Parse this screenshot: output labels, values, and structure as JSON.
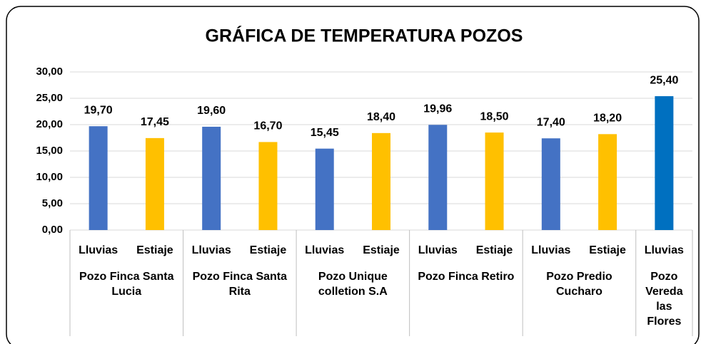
{
  "chart_data": {
    "type": "bar",
    "title": "GRÁFICA DE TEMPERATURA POZOS",
    "ylim": [
      0,
      30
    ],
    "yticks": [
      {
        "value": 0,
        "label": "0,00"
      },
      {
        "value": 5,
        "label": "5,00"
      },
      {
        "value": 10,
        "label": "10,00"
      },
      {
        "value": 15,
        "label": "15,00"
      },
      {
        "value": 20,
        "label": "20,00"
      },
      {
        "value": 25,
        "label": "25,00"
      },
      {
        "value": 30,
        "label": "30,00"
      }
    ],
    "grid": true,
    "groups": [
      {
        "name": "Pozo Finca Santa Lucia",
        "categories": [
          "Lluvias",
          "Estiaje"
        ],
        "values": [
          19.7,
          17.45
        ],
        "value_labels": [
          "19,70",
          "17,45"
        ],
        "colors": [
          "#4472c4",
          "#ffc000"
        ]
      },
      {
        "name": "Pozo Finca Santa Rita",
        "categories": [
          "Lluvias",
          "Estiaje"
        ],
        "values": [
          19.6,
          16.7
        ],
        "value_labels": [
          "19,60",
          "16,70"
        ],
        "colors": [
          "#4472c4",
          "#ffc000"
        ]
      },
      {
        "name": "Pozo Unique colletion S.A",
        "categories": [
          "Lluvias",
          "Estiaje"
        ],
        "values": [
          15.45,
          18.4
        ],
        "value_labels": [
          "15,45",
          "18,40"
        ],
        "colors": [
          "#4472c4",
          "#ffc000"
        ]
      },
      {
        "name": "Pozo Finca Retiro",
        "categories": [
          "Lluvias",
          "Estiaje"
        ],
        "values": [
          19.96,
          18.5
        ],
        "value_labels": [
          "19,96",
          "18,50"
        ],
        "colors": [
          "#4472c4",
          "#ffc000"
        ]
      },
      {
        "name": "Pozo Predio Cucharo",
        "categories": [
          "Lluvias",
          "Estiaje"
        ],
        "values": [
          17.4,
          18.2
        ],
        "value_labels": [
          "17,40",
          "18,20"
        ],
        "colors": [
          "#4472c4",
          "#ffc000"
        ]
      },
      {
        "name": "Pozo Vereda las Flores",
        "categories": [
          "Lluvias"
        ],
        "values": [
          25.4
        ],
        "value_labels": [
          "25,40"
        ],
        "colors": [
          "#0070c0"
        ]
      }
    ]
  }
}
